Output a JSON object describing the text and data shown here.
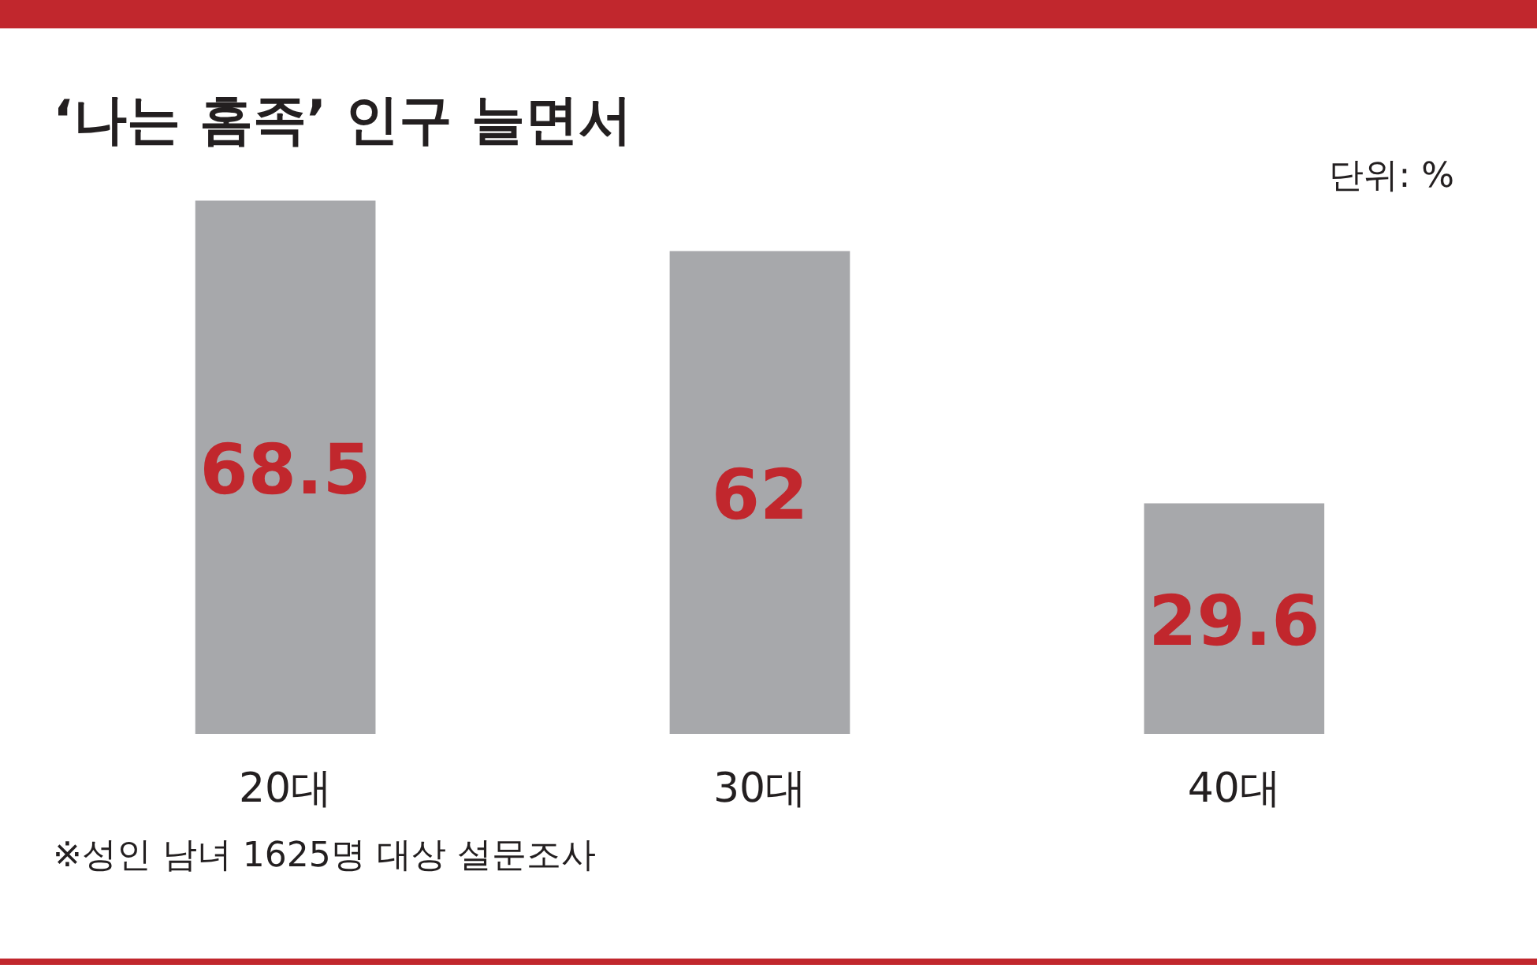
{
  "chart_data": {
    "type": "bar",
    "title": "‘나는 홈족’ 인구 늘면서",
    "categories": [
      "20대",
      "30대",
      "40대"
    ],
    "values": [
      68.5,
      62,
      29.6
    ],
    "color": "#a7a8ab",
    "data_labels": true,
    "tick_labels": "x",
    "annotations": [
      "단위: %",
      "※성인 남녀 1625명 대상 설문조사"
    ]
  }
}
